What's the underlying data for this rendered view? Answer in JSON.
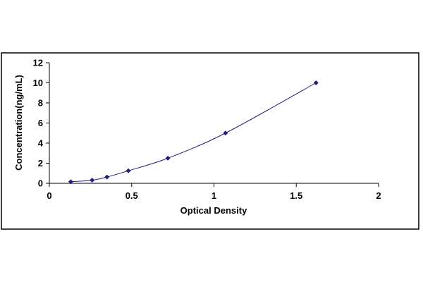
{
  "chart_data": {
    "type": "scatter",
    "title": "",
    "xlabel": "Optical Density",
    "ylabel": "Concentration(ng/mL)",
    "xlim": [
      0,
      2
    ],
    "ylim": [
      0,
      12
    ],
    "x_ticks": [
      "0",
      "0.5",
      "1",
      "1.5",
      "2"
    ],
    "y_ticks": [
      "0",
      "2",
      "4",
      "6",
      "8",
      "10",
      "12"
    ],
    "grid": false,
    "legend": "none",
    "trendline": "smooth curve through points",
    "series": [
      {
        "x": [
          0.13,
          0.26,
          0.35,
          0.48,
          0.72,
          1.07,
          1.62
        ],
        "y": [
          0.156,
          0.313,
          0.625,
          1.25,
          2.5,
          5,
          10
        ],
        "color": "#1f1f7a"
      }
    ]
  }
}
